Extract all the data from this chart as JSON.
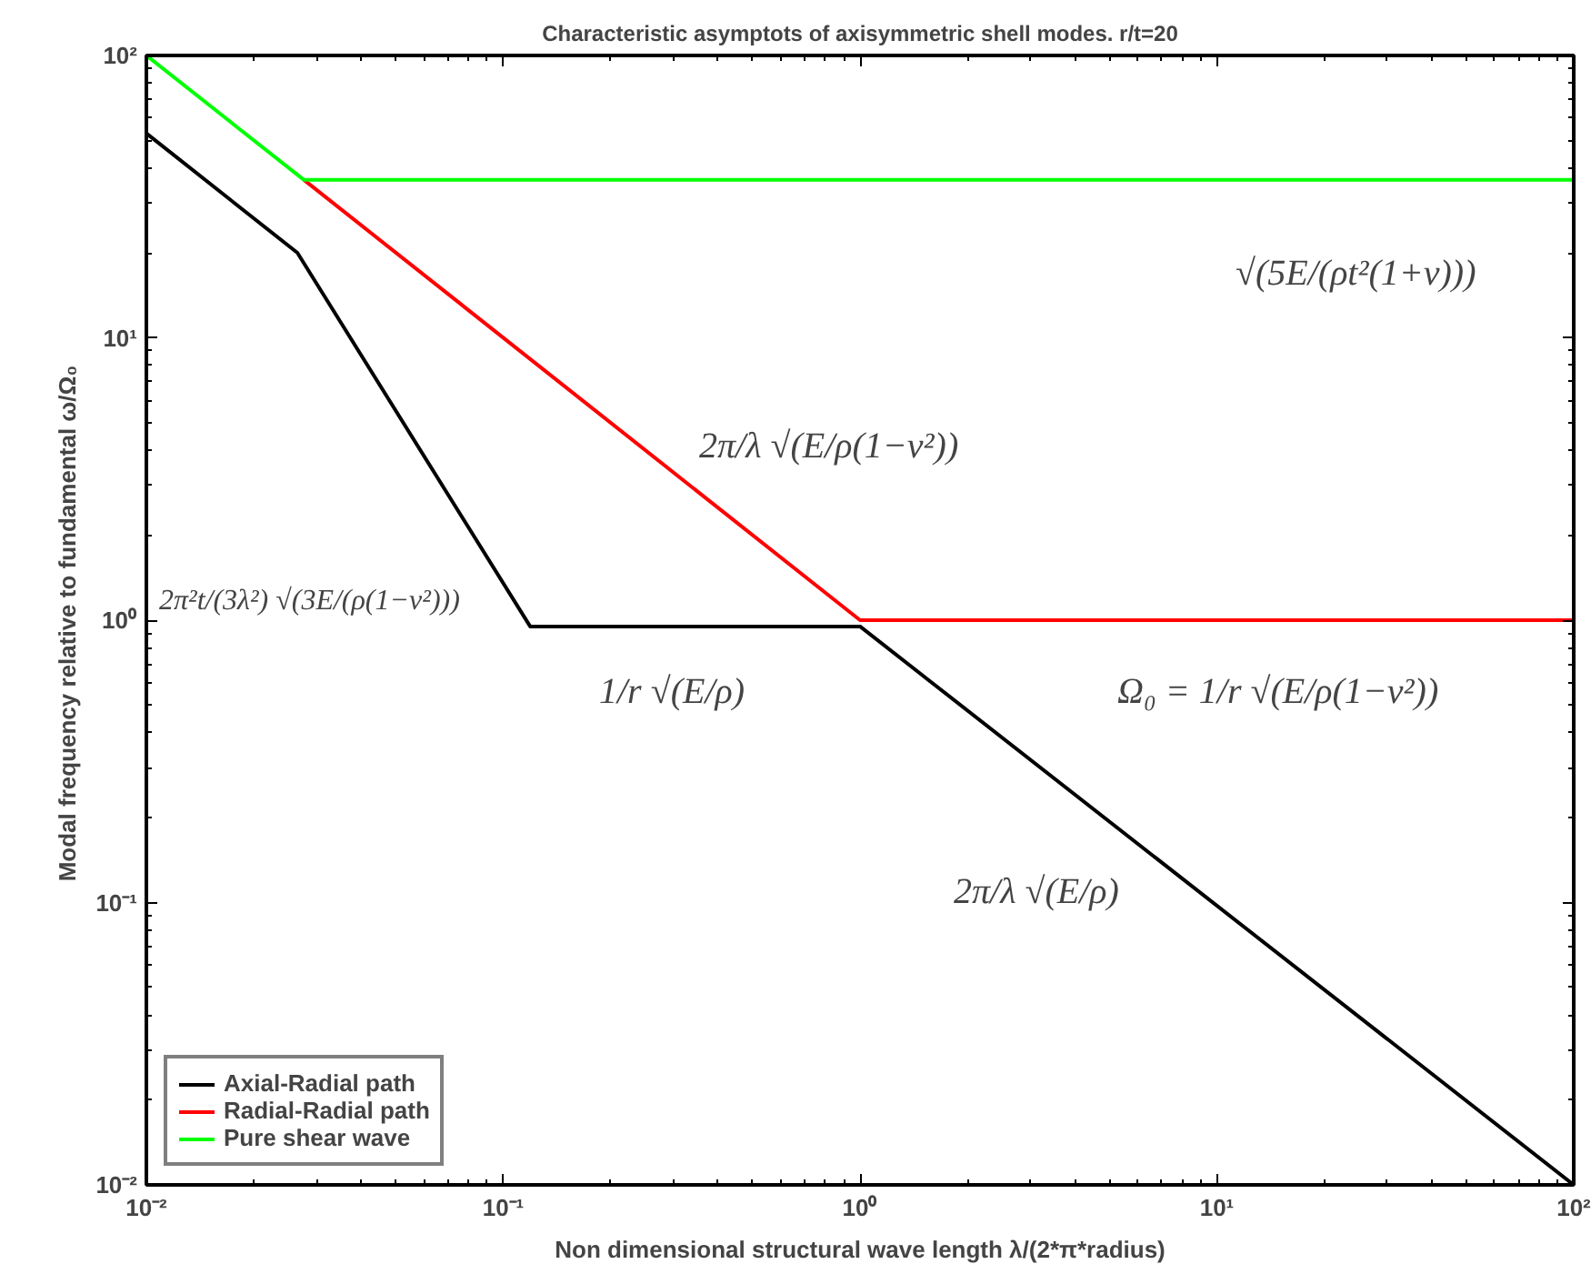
{
  "chart_data": {
    "type": "line",
    "title": "Characteristic asymptots of axisymmetric shell modes. r/t=20",
    "xlabel": "Non dimensional structural wave length λ/(2*π*radius)",
    "ylabel": "Modal frequency relative to fundamental  ω/Ω₀",
    "log": "xy",
    "grid": false,
    "legend": "bottom left",
    "line_style": "solid",
    "marker": "none",
    "xlim": [
      0.01,
      100
    ],
    "ylim": [
      0.01,
      100
    ],
    "xticks": [
      {
        "value": 0.01,
        "label": "10⁻²"
      },
      {
        "value": 0.1,
        "label": "10⁻¹"
      },
      {
        "value": 1,
        "label": "10⁰"
      },
      {
        "value": 10,
        "label": "10¹"
      },
      {
        "value": 100,
        "label": "10²"
      }
    ],
    "yticks": [
      {
        "value": 0.01,
        "label": "10⁻²"
      },
      {
        "value": 0.1,
        "label": "10⁻¹"
      },
      {
        "value": 1,
        "label": "10⁰"
      },
      {
        "value": 10,
        "label": "10¹"
      },
      {
        "value": 100,
        "label": "10²"
      }
    ],
    "series": [
      {
        "name": "Axial-Radial path",
        "color": "#000000",
        "x": [
          0.01,
          0.0265,
          0.119,
          1,
          100
        ],
        "values": [
          53,
          20,
          0.95,
          0.95,
          0.01
        ]
      },
      {
        "name": "Radial-Radial path",
        "color": "#ff0000",
        "x": [
          0.0276,
          1,
          100
        ],
        "values": [
          36.3,
          1,
          1
        ]
      },
      {
        "name": "Pure shear wave",
        "color": "#00ff00",
        "x": [
          0.01,
          0.0276,
          100
        ],
        "values": [
          100,
          36.3,
          36.3
        ]
      }
    ],
    "annotations": [
      "√(5E/(ρt²(1+ν)))",
      "2π/λ √(E/ρ(1−ν²))",
      "2π²t/(3λ²) √(3E/(ρ(1−ν²)))",
      "1/r √(E/ρ)",
      "Ω₀ = 1/r √(E/ρ(1−ν²))",
      "2π/λ √(E/ρ)"
    ]
  }
}
